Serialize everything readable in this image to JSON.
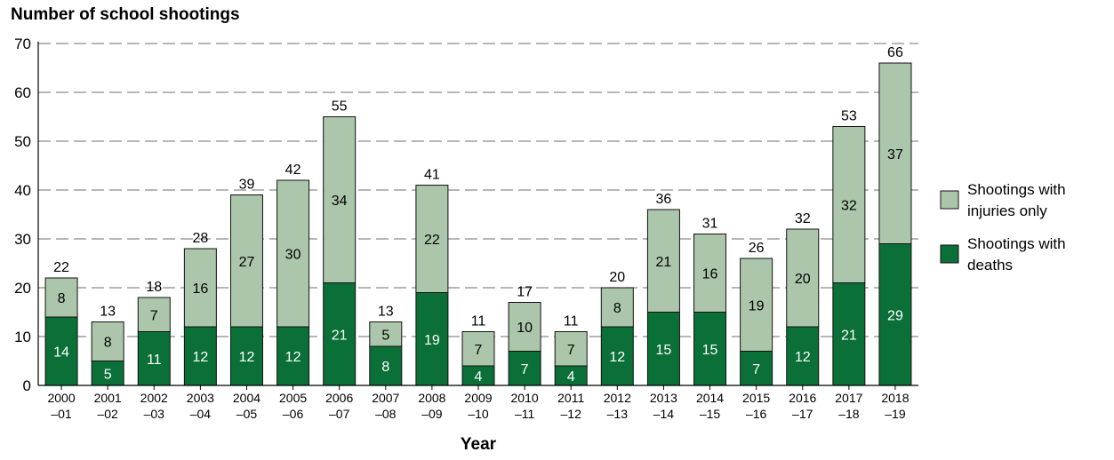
{
  "chart_data": {
    "type": "bar",
    "stacked": true,
    "title": "Number of school shootings",
    "xlabel": "Year",
    "ylabel": "",
    "ylim": [
      0,
      70
    ],
    "yticks": [
      0,
      10,
      20,
      30,
      40,
      50,
      60,
      70
    ],
    "grid": "horizontal dashed",
    "legend_position": "right",
    "categories": [
      [
        "2000",
        "–01"
      ],
      [
        "2001",
        "–02"
      ],
      [
        "2002",
        "–03"
      ],
      [
        "2003",
        "–04"
      ],
      [
        "2004",
        "–05"
      ],
      [
        "2005",
        "–06"
      ],
      [
        "2006",
        "–07"
      ],
      [
        "2007",
        "–08"
      ],
      [
        "2008",
        "–09"
      ],
      [
        "2009",
        "–10"
      ],
      [
        "2010",
        "–11"
      ],
      [
        "2011",
        "–12"
      ],
      [
        "2012",
        "–13"
      ],
      [
        "2013",
        "–14"
      ],
      [
        "2014",
        "–15"
      ],
      [
        "2015",
        "–16"
      ],
      [
        "2016",
        "–17"
      ],
      [
        "2017",
        "–18"
      ],
      [
        "2018",
        "–19"
      ]
    ],
    "series": [
      {
        "name": "Shootings with deaths",
        "legend_lines": [
          "Shootings with",
          "deaths"
        ],
        "color": "#0b7038",
        "values": [
          14,
          5,
          11,
          12,
          12,
          12,
          21,
          8,
          19,
          4,
          7,
          4,
          12,
          15,
          15,
          7,
          12,
          21,
          29
        ]
      },
      {
        "name": "Shootings with injuries only",
        "legend_lines": [
          "Shootings with",
          "injuries only"
        ],
        "color": "#acc6ab",
        "values": [
          8,
          8,
          7,
          16,
          27,
          30,
          34,
          5,
          22,
          7,
          10,
          7,
          8,
          21,
          16,
          19,
          20,
          32,
          37
        ]
      }
    ],
    "totals": [
      22,
      13,
      18,
      28,
      39,
      42,
      55,
      13,
      41,
      11,
      17,
      11,
      20,
      36,
      31,
      26,
      32,
      53,
      66
    ]
  }
}
